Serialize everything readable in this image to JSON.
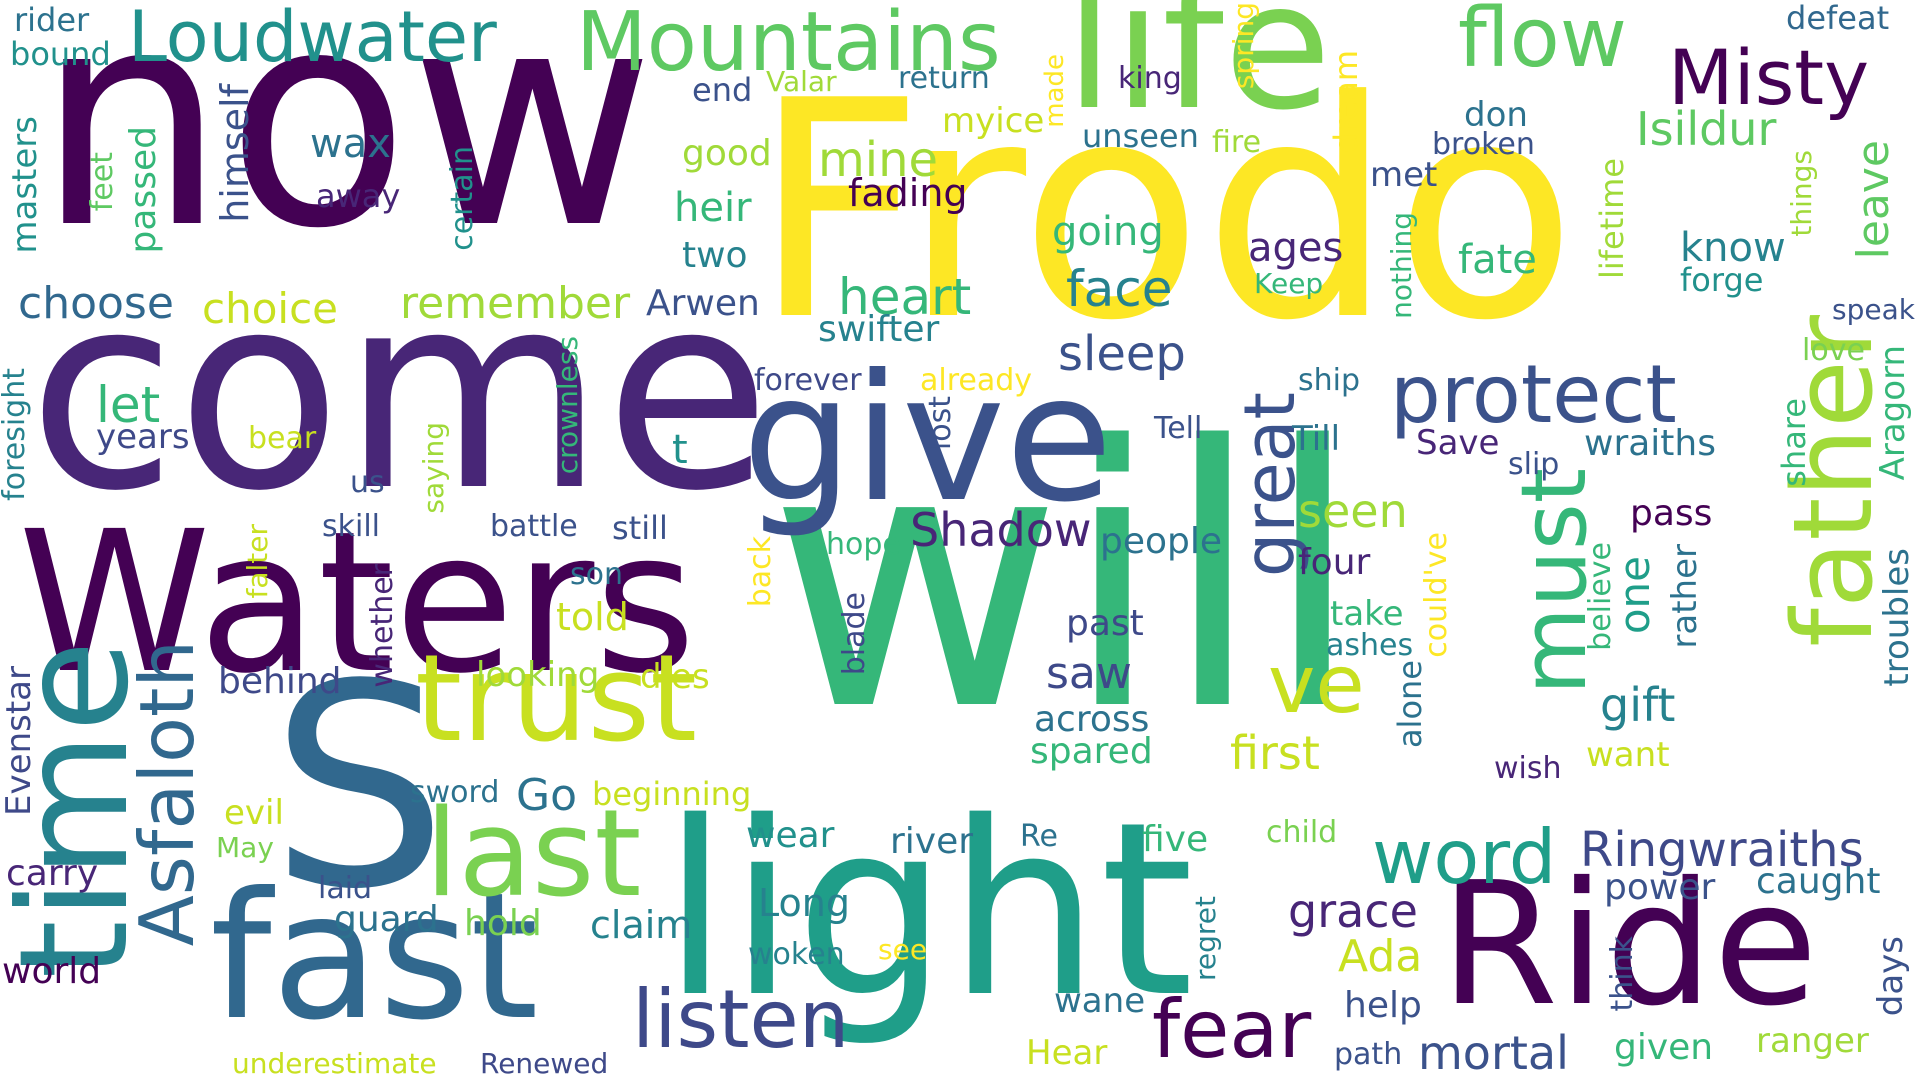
{
  "words": [
    {
      "id": "frodo",
      "text": "Frodo",
      "color": "#fde725"
    },
    {
      "id": "will",
      "text": "will",
      "color": "#35b779"
    },
    {
      "id": "now",
      "text": "now",
      "color": "#440154"
    },
    {
      "id": "come",
      "text": "come",
      "color": "#482677"
    },
    {
      "id": "waters",
      "text": "Waters",
      "color": "#440154"
    },
    {
      "id": "s",
      "text": "S",
      "color": "#31688e"
    },
    {
      "id": "light",
      "text": "light",
      "color": "#1f9e89"
    },
    {
      "id": "ride",
      "text": "Ride",
      "color": "#440154"
    },
    {
      "id": "give",
      "text": "give",
      "color": "#3b528b"
    },
    {
      "id": "fast",
      "text": "fast",
      "color": "#31688e"
    },
    {
      "id": "time",
      "text": "time",
      "color": "#26828e"
    },
    {
      "id": "life",
      "text": "life",
      "color": "#7ad151"
    },
    {
      "id": "father",
      "text": "father",
      "color": "#a0da39"
    },
    {
      "id": "trust",
      "text": "trust",
      "color": "#c8e020"
    },
    {
      "id": "last",
      "text": "last",
      "color": "#7ad151"
    },
    {
      "id": "asfaloth",
      "text": "Asfaloth",
      "color": "#31688e"
    },
    {
      "id": "mountains",
      "text": "Mountains",
      "color": "#5ec962"
    },
    {
      "id": "loudwater",
      "text": "Loudwater",
      "color": "#21918c"
    },
    {
      "id": "flow",
      "text": "flow",
      "color": "#5ec962"
    },
    {
      "id": "misty",
      "text": "Misty",
      "color": "#440154"
    },
    {
      "id": "must",
      "text": "must",
      "color": "#35b779"
    },
    {
      "id": "protect",
      "text": "protect",
      "color": "#3b528b"
    },
    {
      "id": "listen",
      "text": "listen",
      "color": "#3e4989"
    },
    {
      "id": "fear",
      "text": "fear",
      "color": "#440154"
    },
    {
      "id": "word",
      "text": "word",
      "color": "#1f9e89"
    },
    {
      "id": "great",
      "text": "great",
      "color": "#3b528b"
    },
    {
      "id": "ve",
      "text": "ve",
      "color": "#c8e020"
    },
    {
      "id": "ringwraiths",
      "text": "Ringwraiths",
      "color": "#3e4989"
    },
    {
      "id": "isildur",
      "text": "Isildur",
      "color": "#5ec962"
    },
    {
      "id": "heart",
      "text": "heart",
      "color": "#35b779"
    },
    {
      "id": "face",
      "text": "face",
      "color": "#26828e"
    },
    {
      "id": "sleep",
      "text": "sleep",
      "color": "#3b528b"
    },
    {
      "id": "mine",
      "text": "mine",
      "color": "#a0da39"
    },
    {
      "id": "choose",
      "text": "choose",
      "color": "#31688e"
    },
    {
      "id": "choice",
      "text": "choice",
      "color": "#c8e020"
    },
    {
      "id": "remember",
      "text": "remember",
      "color": "#a0da39"
    },
    {
      "id": "shadow",
      "text": "Shadow",
      "color": "#482677"
    },
    {
      "id": "grace",
      "text": "grace",
      "color": "#482677"
    },
    {
      "id": "mortal",
      "text": "mortal",
      "color": "#3b528b"
    },
    {
      "id": "gift",
      "text": "gift",
      "color": "#26828e"
    },
    {
      "id": "one",
      "text": "one",
      "color": "#1f9e89"
    },
    {
      "id": "first",
      "text": "first",
      "color": "#c8e020"
    },
    {
      "id": "seen",
      "text": "seen",
      "color": "#a0da39"
    },
    {
      "id": "saw",
      "text": "saw",
      "color": "#3e4989"
    },
    {
      "id": "ada",
      "text": "Ada",
      "color": "#c8e020"
    },
    {
      "id": "leave",
      "text": "leave",
      "color": "#5ec962"
    },
    {
      "id": "aragorn",
      "text": "Aragorn",
      "color": "#35b779"
    },
    {
      "id": "troubles",
      "text": "troubles",
      "color": "#2c728e"
    },
    {
      "id": "fate",
      "text": "fate",
      "color": "#35b779"
    },
    {
      "id": "know",
      "text": "know",
      "color": "#26828e"
    },
    {
      "id": "forge",
      "text": "forge",
      "color": "#21918c"
    },
    {
      "id": "ages",
      "text": "ages",
      "color": "#482677"
    },
    {
      "id": "going",
      "text": "going",
      "color": "#35b779"
    },
    {
      "id": "fading",
      "text": "fading",
      "color": "#440154"
    },
    {
      "id": "swifter",
      "text": "swifter",
      "color": "#26828e"
    },
    {
      "id": "arwen",
      "text": "Arwen",
      "color": "#3b528b"
    },
    {
      "id": "heir",
      "text": "heir",
      "color": "#35b779"
    },
    {
      "id": "two",
      "text": "two",
      "color": "#26828e"
    },
    {
      "id": "good",
      "text": "good",
      "color": "#a0da39"
    },
    {
      "id": "wax",
      "text": "wax",
      "color": "#2c728e"
    },
    {
      "id": "away",
      "text": "away",
      "color": "#482677"
    },
    {
      "id": "end",
      "text": "end",
      "color": "#3b528b"
    },
    {
      "id": "valar",
      "text": "Valar",
      "color": "#a0da39"
    },
    {
      "id": "return",
      "text": "return",
      "color": "#2c728e"
    },
    {
      "id": "myice",
      "text": "myice",
      "color": "#c8e020"
    },
    {
      "id": "made",
      "text": "made",
      "color": "#fde725"
    },
    {
      "id": "king",
      "text": "king",
      "color": "#482677"
    },
    {
      "id": "unseen",
      "text": "unseen",
      "color": "#2c728e"
    },
    {
      "id": "spring",
      "text": "spring",
      "color": "#fde725"
    },
    {
      "id": "dream",
      "text": "dream",
      "color": "#fde725"
    },
    {
      "id": "fire",
      "text": "fire",
      "color": "#a0da39"
    },
    {
      "id": "don",
      "text": "don",
      "color": "#2c728e"
    },
    {
      "id": "broken",
      "text": "broken",
      "color": "#3b528b"
    },
    {
      "id": "met",
      "text": "met",
      "color": "#3b528b"
    },
    {
      "id": "defeat",
      "text": "defeat",
      "color": "#31688e"
    },
    {
      "id": "keep",
      "text": "Keep",
      "color": "#35b779"
    },
    {
      "id": "nothing",
      "text": "nothing",
      "color": "#35b779"
    },
    {
      "id": "lifetime",
      "text": "lifetime",
      "color": "#a0da39"
    },
    {
      "id": "things",
      "text": "things",
      "color": "#a0da39"
    },
    {
      "id": "speak",
      "text": "speak",
      "color": "#3b528b"
    },
    {
      "id": "love",
      "text": "love",
      "color": "#7ad151"
    },
    {
      "id": "rider",
      "text": "rider",
      "color": "#2c728e"
    },
    {
      "id": "bound",
      "text": "bound",
      "color": "#21918c"
    },
    {
      "id": "himself",
      "text": "himself",
      "color": "#3b528b"
    },
    {
      "id": "masters",
      "text": "masters",
      "color": "#21918c"
    },
    {
      "id": "feet",
      "text": "feet",
      "color": "#5ec962"
    },
    {
      "id": "passed",
      "text": "passed",
      "color": "#35b779"
    },
    {
      "id": "certain",
      "text": "certain",
      "color": "#21918c"
    },
    {
      "id": "let",
      "text": "let",
      "color": "#35b779"
    },
    {
      "id": "years",
      "text": "years",
      "color": "#3e4989"
    },
    {
      "id": "bear",
      "text": "bear",
      "color": "#c8e020"
    },
    {
      "id": "foresight",
      "text": "foresight",
      "color": "#26828e"
    },
    {
      "id": "saying",
      "text": "saying",
      "color": "#a0da39"
    },
    {
      "id": "crownless",
      "text": "crownless",
      "color": "#35b779"
    },
    {
      "id": "us",
      "text": "us",
      "color": "#3b528b"
    },
    {
      "id": "t",
      "text": "t",
      "color": "#21918c"
    },
    {
      "id": "skill",
      "text": "skill",
      "color": "#3b528b"
    },
    {
      "id": "battle",
      "text": "battle",
      "color": "#3b528b"
    },
    {
      "id": "still",
      "text": "still",
      "color": "#3b528b"
    },
    {
      "id": "falter",
      "text": "falter",
      "color": "#c8e020"
    },
    {
      "id": "whether",
      "text": "whether",
      "color": "#482677"
    },
    {
      "id": "son",
      "text": "son",
      "color": "#2c728e"
    },
    {
      "id": "told",
      "text": "told",
      "color": "#c8e020"
    },
    {
      "id": "behind",
      "text": "behind",
      "color": "#3e4989"
    },
    {
      "id": "looking",
      "text": "looking",
      "color": "#a0da39"
    },
    {
      "id": "dies",
      "text": "dies",
      "color": "#c8e020"
    },
    {
      "id": "evenstar",
      "text": "Evenstar",
      "color": "#3e4989"
    },
    {
      "id": "evil",
      "text": "evil",
      "color": "#c8e020"
    },
    {
      "id": "may",
      "text": "May",
      "color": "#7ad151"
    },
    {
      "id": "carry",
      "text": "carry",
      "color": "#482677"
    },
    {
      "id": "laid",
      "text": "laid",
      "color": "#3b528b"
    },
    {
      "id": "sword",
      "text": "sword",
      "color": "#2c728e"
    },
    {
      "id": "go",
      "text": "Go",
      "color": "#2c728e"
    },
    {
      "id": "beginning",
      "text": "beginning",
      "color": "#c8e020"
    },
    {
      "id": "guard",
      "text": "guard",
      "color": "#2c728e"
    },
    {
      "id": "hold",
      "text": "hold",
      "color": "#7ad151"
    },
    {
      "id": "claim",
      "text": "claim",
      "color": "#26828e"
    },
    {
      "id": "world",
      "text": "world",
      "color": "#440154"
    },
    {
      "id": "underestimate",
      "text": "underestimate",
      "color": "#c8e020"
    },
    {
      "id": "renewed",
      "text": "Renewed",
      "color": "#3e4989"
    },
    {
      "id": "forever",
      "text": "forever",
      "color": "#3e4989"
    },
    {
      "id": "already",
      "text": "already",
      "color": "#fde725"
    },
    {
      "id": "lost",
      "text": "lost",
      "color": "#3b528b"
    },
    {
      "id": "tell",
      "text": "Tell",
      "color": "#3b528b"
    },
    {
      "id": "ship",
      "text": "ship",
      "color": "#2c728e"
    },
    {
      "id": "till",
      "text": "Till",
      "color": "#2c728e"
    },
    {
      "id": "save",
      "text": "Save",
      "color": "#482677"
    },
    {
      "id": "slip",
      "text": "slip",
      "color": "#3b528b"
    },
    {
      "id": "wraiths",
      "text": "wraiths",
      "color": "#2c728e"
    },
    {
      "id": "share",
      "text": "share",
      "color": "#35b779"
    },
    {
      "id": "hope",
      "text": "hope",
      "color": "#35b779"
    },
    {
      "id": "back",
      "text": "back",
      "color": "#fde725"
    },
    {
      "id": "people",
      "text": "people",
      "color": "#2c728e"
    },
    {
      "id": "four",
      "text": "four",
      "color": "#482677"
    },
    {
      "id": "pass",
      "text": "pass",
      "color": "#440154"
    },
    {
      "id": "rather",
      "text": "rather",
      "color": "#2c728e"
    },
    {
      "id": "believe",
      "text": "believe",
      "color": "#35b779"
    },
    {
      "id": "past",
      "text": "past",
      "color": "#3e4989"
    },
    {
      "id": "take",
      "text": "take",
      "color": "#35b779"
    },
    {
      "id": "ashes",
      "text": "ashes",
      "color": "#26828e"
    },
    {
      "id": "couldve",
      "text": "could've",
      "color": "#fde725"
    },
    {
      "id": "blade",
      "text": "blade",
      "color": "#3e4989"
    },
    {
      "id": "across",
      "text": "across",
      "color": "#2c728e"
    },
    {
      "id": "spared",
      "text": "spared",
      "color": "#35b779"
    },
    {
      "id": "alone",
      "text": "alone",
      "color": "#2c728e"
    },
    {
      "id": "want",
      "text": "want",
      "color": "#c8e020"
    },
    {
      "id": "wish",
      "text": "wish",
      "color": "#482677"
    },
    {
      "id": "wear",
      "text": "wear",
      "color": "#21918c"
    },
    {
      "id": "river",
      "text": "river",
      "color": "#2c728e"
    },
    {
      "id": "re",
      "text": "Re",
      "color": "#2c728e"
    },
    {
      "id": "five",
      "text": "five",
      "color": "#35b779"
    },
    {
      "id": "child",
      "text": "child",
      "color": "#7ad151"
    },
    {
      "id": "power",
      "text": "power",
      "color": "#3b528b"
    },
    {
      "id": "caught",
      "text": "caught",
      "color": "#2c728e"
    },
    {
      "id": "long",
      "text": "Long",
      "color": "#26828e"
    },
    {
      "id": "woken",
      "text": "woken",
      "color": "#26828e"
    },
    {
      "id": "see",
      "text": "see",
      "color": "#fde725"
    },
    {
      "id": "regret",
      "text": "regret",
      "color": "#26828e"
    },
    {
      "id": "wane",
      "text": "wane",
      "color": "#2c728e"
    },
    {
      "id": "help",
      "text": "help",
      "color": "#3b528b"
    },
    {
      "id": "think",
      "text": "think",
      "color": "#3b528b"
    },
    {
      "id": "days",
      "text": "days",
      "color": "#3b528b"
    },
    {
      "id": "hear",
      "text": "Hear",
      "color": "#c8e020"
    },
    {
      "id": "path",
      "text": "path",
      "color": "#3b528b"
    },
    {
      "id": "given",
      "text": "given",
      "color": "#35b779"
    },
    {
      "id": "ranger",
      "text": "ranger",
      "color": "#a0da39"
    }
  ]
}
